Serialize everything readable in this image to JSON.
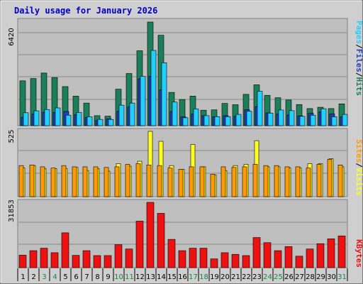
{
  "title": "Daily usage for January 2026",
  "colors": {
    "background": "#bfbfbf",
    "frame": "#808080",
    "hits": "#1b7f5a",
    "files": "#1f3fbf",
    "pages": "#22d0ff",
    "visits": "#ffff22",
    "sites": "#ff9a00",
    "kbytes": "#ee1111",
    "weekday_label": "#000000",
    "weekend_label": "#118844",
    "separator": "#000000"
  },
  "chart_data": [
    {
      "type": "bar",
      "title": "",
      "ylabel_parts": [
        "Pages",
        "/",
        "Files",
        "/",
        "Hits"
      ],
      "ylabel_colors": [
        "#22d0ff",
        "#000000",
        "#1f3fbf",
        "#000000",
        "#1b7f5a"
      ],
      "y_max_label": "6420",
      "ylim": [
        0,
        6420
      ],
      "categories": [
        "1",
        "2",
        "3",
        "4",
        "5",
        "6",
        "7",
        "8",
        "9",
        "10",
        "11",
        "12",
        "13",
        "14",
        "15",
        "16",
        "17",
        "18",
        "19",
        "20",
        "21",
        "22",
        "23",
        "24",
        "25",
        "26",
        "27",
        "28",
        "29",
        "30",
        "31"
      ],
      "series": [
        {
          "name": "Hits",
          "values": [
            2780,
            2920,
            3260,
            2980,
            2420,
            1830,
            1400,
            620,
            590,
            2260,
            3230,
            4640,
            6420,
            5600,
            2060,
            1620,
            1830,
            960,
            980,
            1380,
            1300,
            1940,
            2530,
            1880,
            1730,
            1590,
            1310,
            1060,
            1140,
            1060,
            1350
          ]
        },
        {
          "name": "Files",
          "values": [
            520,
            720,
            830,
            820,
            880,
            690,
            520,
            330,
            420,
            890,
            1160,
            2900,
            3060,
            2220,
            880,
            550,
            730,
            620,
            560,
            620,
            580,
            990,
            1180,
            790,
            720,
            660,
            610,
            770,
            860,
            730,
            540
          ]
        },
        {
          "name": "Pages",
          "values": [
            800,
            920,
            1000,
            1100,
            650,
            820,
            550,
            390,
            390,
            1270,
            1400,
            3050,
            4660,
            3900,
            1460,
            490,
            1040,
            620,
            560,
            560,
            700,
            890,
            2130,
            780,
            970,
            930,
            580,
            650,
            1050,
            550,
            700
          ]
        }
      ]
    },
    {
      "type": "bar",
      "title": "",
      "ylabel_parts": [
        "Sites",
        "/",
        "Visits"
      ],
      "ylabel_colors": [
        "#ff9a00",
        "#000000",
        "#ffff22"
      ],
      "y_max_label": "525",
      "ylim": [
        0,
        525
      ],
      "categories": [
        "1",
        "2",
        "3",
        "4",
        "5",
        "6",
        "7",
        "8",
        "9",
        "10",
        "11",
        "12",
        "13",
        "14",
        "15",
        "16",
        "17",
        "18",
        "19",
        "20",
        "21",
        "22",
        "23",
        "24",
        "25",
        "26",
        "27",
        "28",
        "29",
        "30",
        "31"
      ],
      "series": [
        {
          "name": "Visits",
          "values": [
            230,
            250,
            225,
            225,
            225,
            235,
            210,
            225,
            205,
            265,
            245,
            285,
            525,
            445,
            250,
            220,
            420,
            240,
            175,
            210,
            250,
            260,
            450,
            240,
            240,
            230,
            230,
            265,
            265,
            305,
            240
          ]
        },
        {
          "name": "Sites",
          "values": [
            250,
            255,
            240,
            230,
            250,
            240,
            240,
            240,
            235,
            240,
            260,
            265,
            255,
            250,
            230,
            220,
            240,
            240,
            180,
            240,
            235,
            240,
            260,
            250,
            250,
            240,
            240,
            230,
            260,
            300,
            255
          ]
        }
      ]
    },
    {
      "type": "bar",
      "title": "",
      "ylabel_parts": [
        "KBytes"
      ],
      "ylabel_colors": [
        "#ee1111"
      ],
      "y_max_label": "31853",
      "ylim": [
        0,
        31853
      ],
      "categories": [
        "1",
        "2",
        "3",
        "4",
        "5",
        "6",
        "7",
        "8",
        "9",
        "10",
        "11",
        "12",
        "13",
        "14",
        "15",
        "16",
        "17",
        "18",
        "19",
        "20",
        "21",
        "22",
        "23",
        "24",
        "25",
        "26",
        "27",
        "28",
        "29",
        "30",
        "31"
      ],
      "series": [
        {
          "name": "KBytes",
          "values": [
            6100,
            8300,
            9500,
            7300,
            17000,
            6000,
            8300,
            5900,
            5900,
            11200,
            9100,
            22700,
            31853,
            26500,
            13800,
            8300,
            9500,
            9500,
            4300,
            7300,
            6500,
            5900,
            14700,
            12200,
            8300,
            10300,
            5600,
            9100,
            11700,
            14100,
            15500
          ]
        }
      ]
    }
  ]
}
